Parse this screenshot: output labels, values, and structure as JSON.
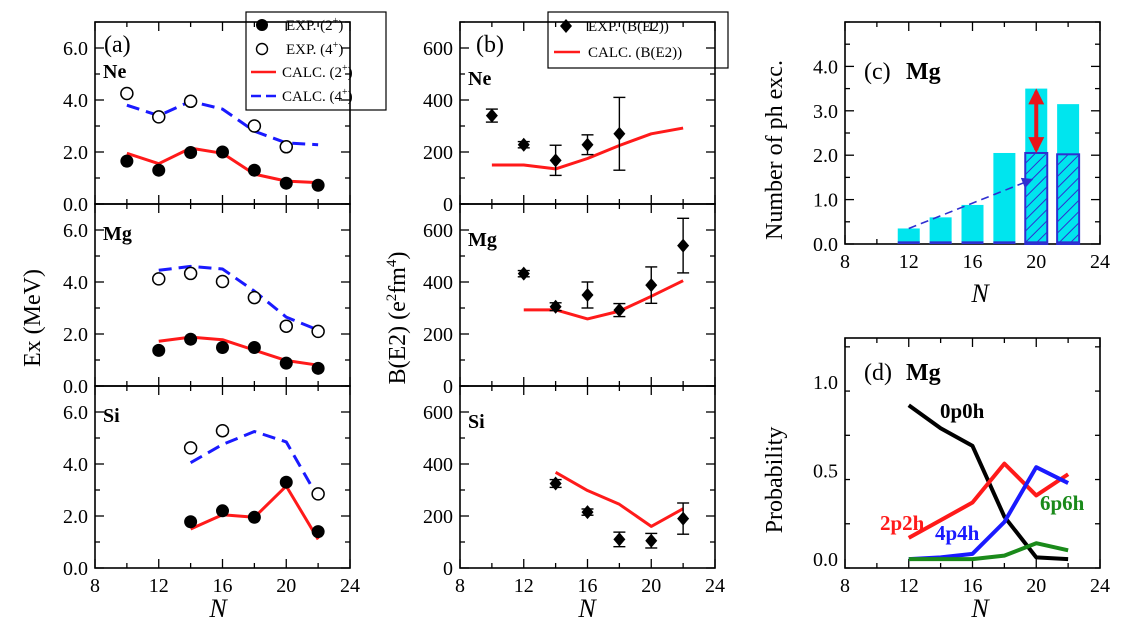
{
  "colors": {
    "exp": "#000000",
    "calc_2": "#ff1a1a",
    "calc_4": "#1a1aff",
    "bar_total": "#00e5ee",
    "bar_hatch": "#2f2fd0",
    "black_line": "#000000",
    "red_line": "#ff1a1a",
    "blue_line": "#1a1aff",
    "green_line": "#1a8a1a"
  },
  "panel_a": {
    "tag": "(a)",
    "ylabel": "Ex (MeV)",
    "xlabel": "N",
    "xticks": [
      "8",
      "12",
      "16",
      "20",
      "24"
    ],
    "legend": {
      "exp2": "EXP. (2",
      "exp4": "EXP. (4",
      "calc2": "CALC. (2",
      "calc4": "CALC. (4",
      "sup2": "+",
      "sup4": "+",
      "close": ")"
    }
  },
  "panel_b": {
    "tag": "(b)",
    "ylabel_main": "B(E2) (e",
    "ylabel_sup1": "2",
    "ylabel_mid": "fm",
    "ylabel_sup2": "4",
    "ylabel_end": ")",
    "xlabel": "N",
    "xticks": [
      "8",
      "12",
      "16",
      "20",
      "24"
    ],
    "legend": {
      "exp": "EXP. (B(E2))",
      "calc": "CALC. (B(E2))"
    }
  },
  "panel_c": {
    "tag": "(c)",
    "title": "Mg",
    "ylabel": "Number of  ph exc.",
    "xlabel": "N",
    "xticks": [
      "8",
      "12",
      "16",
      "20",
      "24"
    ]
  },
  "panel_d": {
    "tag": "(d)",
    "title": "Mg",
    "ylabel": "Probability",
    "xlabel": "N",
    "xticks": [
      "8",
      "12",
      "16",
      "20",
      "24"
    ]
  },
  "chart_data": [
    {
      "type": "scatter",
      "panel": "a",
      "nucleus": "Ne",
      "xlim": [
        8,
        24
      ],
      "ylim": [
        0,
        7
      ],
      "yticks": [
        "0.0",
        "2.0",
        "4.0",
        "6.0"
      ],
      "series": [
        {
          "name": "EXP. (2+)",
          "kind": "marker-filled",
          "x": [
            10,
            12,
            14,
            16,
            18,
            20,
            22
          ],
          "y": [
            1.65,
            1.3,
            1.98,
            2.0,
            1.3,
            0.8,
            0.72
          ]
        },
        {
          "name": "EXP. (4+)",
          "kind": "marker-open",
          "x": [
            10,
            12,
            14,
            18,
            20
          ],
          "y": [
            4.25,
            3.35,
            3.95,
            3.0,
            2.2
          ]
        },
        {
          "name": "CALC. (2+)",
          "kind": "line-solid",
          "x": [
            10,
            12,
            14,
            16,
            18,
            20,
            22
          ],
          "y": [
            1.95,
            1.55,
            2.15,
            1.95,
            1.15,
            0.88,
            0.82
          ]
        },
        {
          "name": "CALC. (4+)",
          "kind": "line-dashed",
          "x": [
            10,
            12,
            14,
            16,
            18,
            20,
            22
          ],
          "y": [
            3.8,
            3.4,
            3.95,
            3.65,
            2.8,
            2.35,
            2.28
          ]
        }
      ]
    },
    {
      "type": "scatter",
      "panel": "a",
      "nucleus": "Mg",
      "xlim": [
        8,
        24
      ],
      "ylim": [
        0,
        7
      ],
      "yticks": [
        "0.0",
        "2.0",
        "4.0",
        "6.0"
      ],
      "series": [
        {
          "name": "EXP. (2+)",
          "kind": "marker-filled",
          "x": [
            12,
            14,
            16,
            18,
            20,
            22
          ],
          "y": [
            1.37,
            1.8,
            1.48,
            1.48,
            0.88,
            0.68
          ]
        },
        {
          "name": "EXP. (4+)",
          "kind": "marker-open",
          "x": [
            12,
            14,
            16,
            18,
            20,
            22
          ],
          "y": [
            4.12,
            4.33,
            4.02,
            3.4,
            2.3,
            2.1
          ]
        },
        {
          "name": "CALC. (2+)",
          "kind": "line-solid",
          "x": [
            12,
            14,
            16,
            18,
            20,
            22
          ],
          "y": [
            1.72,
            1.88,
            1.78,
            1.38,
            0.98,
            0.8
          ]
        },
        {
          "name": "CALC. (4+)",
          "kind": "line-dashed",
          "x": [
            12,
            14,
            16,
            18,
            20,
            22
          ],
          "y": [
            4.45,
            4.6,
            4.5,
            3.65,
            2.65,
            2.15
          ]
        }
      ]
    },
    {
      "type": "scatter",
      "panel": "a",
      "nucleus": "Si",
      "xlim": [
        8,
        24
      ],
      "ylim": [
        0,
        7
      ],
      "yticks": [
        "0.0",
        "2.0",
        "4.0",
        "6.0"
      ],
      "series": [
        {
          "name": "EXP. (2+)",
          "kind": "marker-filled",
          "x": [
            14,
            16,
            18,
            20,
            22
          ],
          "y": [
            1.78,
            2.2,
            1.95,
            3.3,
            1.4
          ]
        },
        {
          "name": "EXP. (4+)",
          "kind": "marker-open",
          "x": [
            14,
            16,
            22
          ],
          "y": [
            4.62,
            5.28,
            2.85
          ]
        },
        {
          "name": "CALC. (2+)",
          "kind": "line-solid",
          "x": [
            14,
            16,
            18,
            20,
            22
          ],
          "y": [
            1.5,
            2.05,
            1.95,
            3.15,
            1.1
          ]
        },
        {
          "name": "CALC. (4+)",
          "kind": "line-dashed",
          "x": [
            14,
            16,
            18,
            20,
            22
          ],
          "y": [
            4.05,
            4.75,
            5.25,
            4.85,
            2.7
          ]
        }
      ]
    },
    {
      "type": "scatter",
      "panel": "b",
      "nucleus": "Ne",
      "xlim": [
        8,
        24
      ],
      "ylim": [
        0,
        700
      ],
      "yticks": [
        "0",
        "200",
        "400",
        "600"
      ],
      "series": [
        {
          "name": "EXP. (B(E2))",
          "kind": "diamond",
          "x": [
            10,
            12,
            14,
            16,
            18
          ],
          "y": [
            340,
            228,
            168,
            228,
            270
          ],
          "err": [
            25,
            12,
            58,
            38,
            140
          ]
        },
        {
          "name": "CALC. (B(E2))",
          "kind": "line-solid",
          "x": [
            10,
            12,
            14,
            16,
            18,
            20,
            22
          ],
          "y": [
            150,
            150,
            135,
            175,
            225,
            270,
            292
          ]
        }
      ]
    },
    {
      "type": "scatter",
      "panel": "b",
      "nucleus": "Mg",
      "xlim": [
        8,
        24
      ],
      "ylim": [
        0,
        700
      ],
      "yticks": [
        "0",
        "200",
        "400",
        "600"
      ],
      "series": [
        {
          "name": "EXP. (B(E2))",
          "kind": "diamond",
          "x": [
            12,
            14,
            16,
            18,
            20,
            22
          ],
          "y": [
            432,
            305,
            350,
            292,
            388,
            540
          ],
          "err": [
            12,
            15,
            50,
            25,
            70,
            105
          ]
        },
        {
          "name": "CALC. (B(E2))",
          "kind": "line-solid",
          "x": [
            12,
            14,
            16,
            18,
            20,
            22
          ],
          "y": [
            293,
            293,
            258,
            288,
            345,
            405
          ]
        }
      ]
    },
    {
      "type": "scatter",
      "panel": "b",
      "nucleus": "Si",
      "xlim": [
        8,
        24
      ],
      "ylim": [
        0,
        700
      ],
      "yticks": [
        "0",
        "200",
        "400",
        "600"
      ],
      "series": [
        {
          "name": "EXP. (B(E2))",
          "kind": "diamond",
          "x": [
            14,
            16,
            18,
            20,
            22
          ],
          "y": [
            325,
            215,
            110,
            105,
            190
          ],
          "err": [
            15,
            12,
            28,
            28,
            60
          ]
        },
        {
          "name": "CALC. (B(E2))",
          "kind": "line-solid",
          "x": [
            14,
            16,
            18,
            20,
            22
          ],
          "y": [
            368,
            298,
            245,
            160,
            228
          ]
        }
      ]
    },
    {
      "type": "bar",
      "panel": "c",
      "xlim": [
        8,
        24
      ],
      "ylim": [
        0,
        5
      ],
      "yticks": [
        "0.0",
        "1.0",
        "2.0",
        "3.0",
        "4.0"
      ],
      "x": [
        12,
        14,
        16,
        18,
        20,
        22
      ],
      "series": [
        {
          "name": "total",
          "values": [
            0.35,
            0.6,
            0.88,
            2.05,
            3.5,
            3.15
          ]
        },
        {
          "name": "hatched",
          "values": [
            0,
            0,
            0,
            0,
            2.05,
            2.02
          ]
        },
        {
          "name": "base",
          "values": [
            0.06,
            0.06,
            0.06,
            0.06,
            0.06,
            0.06
          ]
        }
      ],
      "arrow_dashed": {
        "from": [
          12,
          0.35
        ],
        "to": [
          20,
          1.5
        ]
      },
      "arrow_red": {
        "x": 20,
        "from": 2.05,
        "to": 3.5
      }
    },
    {
      "type": "line",
      "panel": "d",
      "xlim": [
        8,
        24
      ],
      "ylim": [
        -0.05,
        1.25
      ],
      "yticks": [
        "0.0",
        "0.5",
        "1.0"
      ],
      "series": [
        {
          "name": "0p0h",
          "x": [
            12,
            14,
            16,
            18,
            20,
            22
          ],
          "y": [
            0.87,
            0.74,
            0.64,
            0.24,
            0.01,
            0.0
          ]
        },
        {
          "name": "2p2h",
          "x": [
            12,
            14,
            16,
            18,
            20,
            22
          ],
          "y": [
            0.12,
            0.22,
            0.32,
            0.54,
            0.36,
            0.48
          ]
        },
        {
          "name": "4p4h",
          "x": [
            12,
            14,
            16,
            18,
            20,
            22
          ],
          "y": [
            0.0,
            0.01,
            0.03,
            0.21,
            0.52,
            0.43
          ]
        },
        {
          "name": "6p6h",
          "x": [
            12,
            14,
            16,
            18,
            20,
            22
          ],
          "y": [
            0.0,
            0.0,
            0.0,
            0.02,
            0.09,
            0.05
          ]
        }
      ]
    }
  ]
}
